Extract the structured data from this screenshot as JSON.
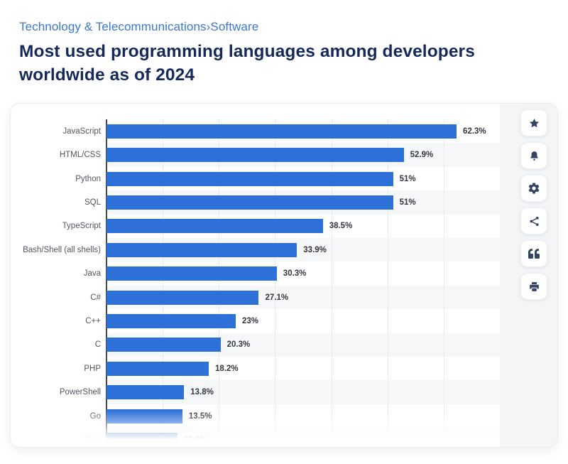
{
  "breadcrumb": {
    "category": "Technology & Telecommunications",
    "separator": "›",
    "subcategory": "Software"
  },
  "title": "Most used programming languages among developers worldwide as of 2024",
  "chart_data": {
    "type": "bar",
    "orientation": "horizontal",
    "title": "Most used programming languages among developers worldwide as of 2024",
    "categories": [
      "JavaScript",
      "HTML/CSS",
      "Python",
      "SQL",
      "TypeScript",
      "Bash/Shell (all shells)",
      "Java",
      "C#",
      "C++",
      "C",
      "PHP",
      "PowerShell",
      "Go",
      "Rust"
    ],
    "values": [
      62.3,
      52.9,
      51,
      51,
      38.5,
      33.9,
      30.3,
      27.1,
      23,
      20.3,
      18.2,
      13.8,
      13.5,
      12.6
    ],
    "value_labels": [
      "62.3%",
      "52.9%",
      "51%",
      "51%",
      "38.5%",
      "33.9%",
      "30.3%",
      "27.1%",
      "23%",
      "20.3%",
      "18.2%",
      "13.8%",
      "13.5%",
      "12.6%"
    ],
    "xlabel": "",
    "ylabel": "",
    "xlim": [
      0,
      70
    ],
    "gridline_step": 10,
    "grid": true,
    "legend": false,
    "bar_color": "#2c70d8",
    "last_row_faded": true
  },
  "toolbar": {
    "buttons": [
      {
        "id": "favorite",
        "icon": "star-icon"
      },
      {
        "id": "notification",
        "icon": "bell-icon"
      },
      {
        "id": "settings",
        "icon": "gear-icon"
      },
      {
        "id": "share",
        "icon": "share-icon"
      },
      {
        "id": "cite",
        "icon": "quote-icon"
      },
      {
        "id": "print",
        "icon": "printer-icon"
      }
    ]
  },
  "colors": {
    "bar": "#2c70d8",
    "title_text": "#15295c",
    "breadcrumb_text": "#3b77d2",
    "icon": "#324366",
    "row_stripe": "#f5f7f9",
    "rail_background": "#f3f5f7"
  }
}
